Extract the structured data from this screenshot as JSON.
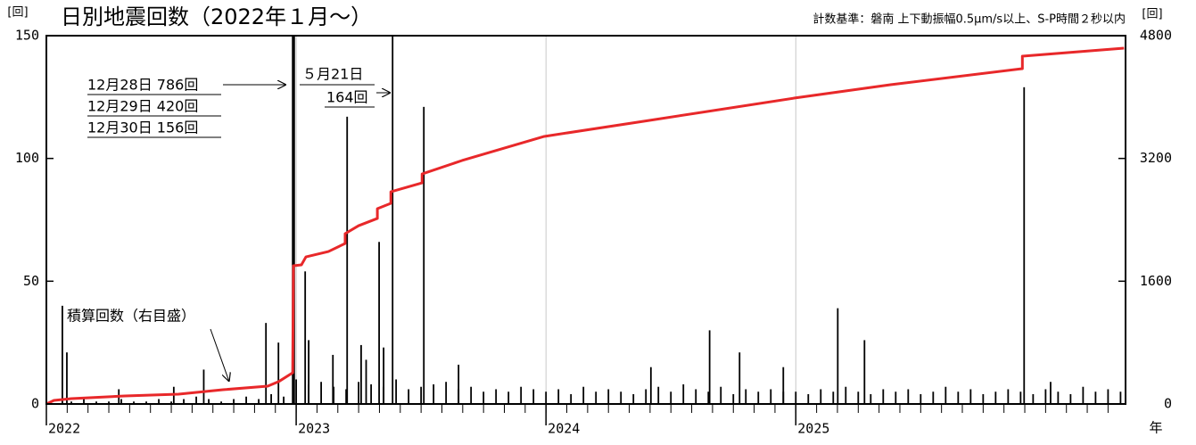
{
  "chart_data": {
    "type": "bar",
    "title": "日別地震回数（2022年１月～）",
    "subtitle": "計数基準：磐南 上下動振幅0.5μm/s以上、S-P時間２秒以内",
    "y_label": "[回]",
    "y2_label": "[回]",
    "x_label": "年",
    "xlim": [
      2022,
      2026.32
    ],
    "xticks": [
      2022,
      2023,
      2024,
      2025
    ],
    "ylim": [
      0,
      150
    ],
    "yticks": [
      0,
      50,
      100,
      150
    ],
    "y2lim": [
      0,
      4800
    ],
    "y2ticks": [
      0,
      1600,
      3200,
      4800
    ],
    "grid": true,
    "annotations": [
      "12月28日 786回",
      "12月29日 420回",
      "12月30日 156回",
      "５月21日",
      "164回",
      "積算回数（右目盛）"
    ],
    "series": [
      {
        "type": "bar",
        "color": "#000000",
        "x": [
          2022.0,
          2022.05,
          2022.1,
          2022.15,
          2022.2,
          2022.25,
          2022.3,
          2022.35,
          2022.4,
          2022.45,
          2022.5,
          2022.55,
          2022.6,
          2022.65,
          2022.7,
          2022.75,
          2022.8,
          2022.85,
          2022.9,
          2022.95,
          2023.0,
          2023.05,
          2023.1,
          2023.15,
          2023.2,
          2023.25,
          2023.3,
          2023.35,
          2023.4,
          2023.45,
          2023.5,
          2023.55,
          2023.6,
          2023.65,
          2023.7,
          2023.75,
          2023.8,
          2023.85,
          2023.9,
          2023.95,
          2024.0,
          2024.05,
          2024.1,
          2024.15,
          2024.2,
          2024.25,
          2024.3,
          2024.35,
          2024.4,
          2024.45,
          2024.5,
          2024.55,
          2024.6,
          2024.65,
          2024.7,
          2024.75,
          2024.8,
          2024.85,
          2024.9,
          2024.95,
          2025.0,
          2025.05,
          2025.1,
          2025.15,
          2025.2,
          2025.25,
          2025.3,
          2025.35,
          2025.4,
          2025.45,
          2025.5,
          2025.55,
          2025.6,
          2025.65,
          2025.7,
          2025.75,
          2025.8,
          2025.85,
          2025.9,
          2025.95,
          2026.0,
          2026.05,
          2026.1,
          2026.15,
          2026.2,
          2026.25,
          2026.3,
          2022.064,
          2022.082,
          2022.29,
          2022.51,
          2022.63,
          2022.879,
          2022.929,
          2022.986,
          2022.989,
          2022.992,
          2023.036,
          2023.05,
          2023.147,
          2023.204,
          2023.26,
          2023.28,
          2023.332,
          2023.35,
          2023.386,
          2023.511,
          2023.65,
          2024.42,
          2024.655,
          2024.775,
          2024.95,
          2025.168,
          2025.275,
          2025.914,
          2026.02
        ],
        "values": [
          1,
          0,
          1,
          2,
          1,
          1,
          2,
          1,
          1,
          2,
          1,
          2,
          3,
          2,
          1,
          2,
          3,
          2,
          4,
          3,
          10,
          8,
          9,
          7,
          6,
          9,
          8,
          7,
          10,
          6,
          7,
          8,
          9,
          6,
          7,
          5,
          6,
          5,
          7,
          6,
          5,
          6,
          4,
          7,
          5,
          6,
          5,
          4,
          6,
          7,
          5,
          8,
          6,
          5,
          7,
          4,
          6,
          5,
          6,
          5,
          5,
          4,
          6,
          5,
          7,
          5,
          4,
          6,
          5,
          6,
          4,
          5,
          7,
          5,
          6,
          4,
          5,
          6,
          5,
          4,
          6,
          5,
          4,
          7,
          5,
          6,
          5,
          40,
          21,
          6,
          7,
          14,
          33,
          25,
          786,
          420,
          156,
          54,
          26,
          20,
          117,
          24,
          18,
          66,
          23,
          164,
          121,
          16,
          15,
          30,
          21,
          15,
          39,
          26,
          129,
          9
        ]
      },
      {
        "type": "line",
        "axis": "y2",
        "color": "#e8282a",
        "x": [
          2022.0,
          2022.03,
          2022.1,
          2022.314,
          2022.529,
          2022.707,
          2022.886,
          2022.929,
          2022.986,
          2022.989,
          2023.021,
          2023.039,
          2023.129,
          2023.196,
          2023.196,
          2023.25,
          2023.325,
          2023.325,
          2023.379,
          2023.379,
          2023.504,
          2023.504,
          2023.664,
          2023.993,
          2024.414,
          2024.993,
          2025.379,
          2025.907,
          2025.907,
          2026.314
        ],
        "values": [
          0,
          46,
          70,
          105,
          128,
          186,
          232,
          290,
          407,
          1801,
          1813,
          1917,
          1987,
          2092,
          2220,
          2324,
          2418,
          2545,
          2615,
          2766,
          2882,
          2998,
          3173,
          3487,
          3696,
          3986,
          4161,
          4370,
          4533,
          4637
        ]
      }
    ]
  }
}
